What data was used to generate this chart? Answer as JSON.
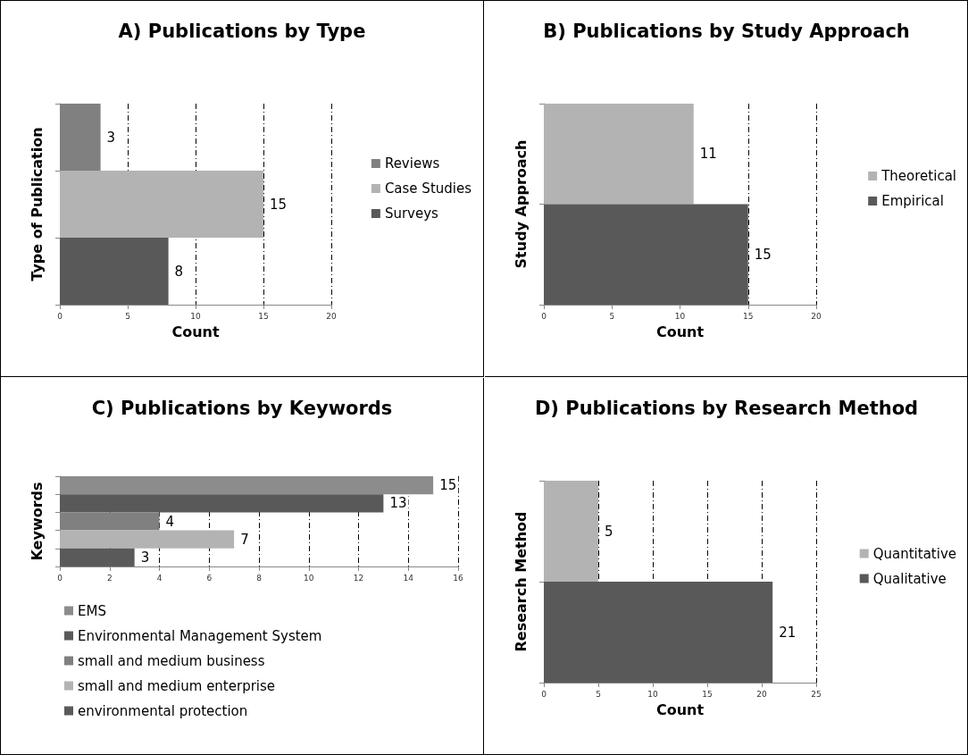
{
  "chart_data": [
    {
      "type": "bar",
      "orientation": "horizontal",
      "title": "A) Publications by Type",
      "xlabel": "Count",
      "ylabel": "Type of Publication",
      "categories": [
        null,
        null,
        null
      ],
      "series": [
        {
          "name": "Reviews",
          "color": "#808080",
          "values": [
            3,
            null,
            null
          ]
        },
        {
          "name": "Case Studies",
          "color": "#b3b3b3",
          "values": [
            null,
            15,
            null
          ]
        },
        {
          "name": "Surveys",
          "color": "#595959",
          "values": [
            null,
            null,
            8
          ]
        }
      ],
      "xlim": [
        0,
        20
      ],
      "xticks": [
        0,
        5,
        10,
        15,
        20
      ],
      "grid": "x",
      "legend": "right",
      "data_labels": true,
      "tick_labels": "x"
    },
    {
      "type": "bar",
      "orientation": "horizontal",
      "title": "B) Publications by Study Approach",
      "xlabel": "Count",
      "ylabel": "Study Approach",
      "categories": [
        null,
        null
      ],
      "series": [
        {
          "name": "Theoretical",
          "color": "#b3b3b3",
          "values": [
            11,
            null
          ]
        },
        {
          "name": "Empirical",
          "color": "#595959",
          "values": [
            null,
            15
          ]
        }
      ],
      "xlim": [
        0,
        20
      ],
      "xticks": [
        0,
        5,
        10,
        15,
        20
      ],
      "grid": "x",
      "legend": "right",
      "data_labels": true,
      "tick_labels": "x"
    },
    {
      "type": "bar",
      "orientation": "horizontal",
      "title": "C) Publications by Keywords",
      "ylabel": "Keywords",
      "categories": [
        null,
        null,
        null,
        null,
        null
      ],
      "series": [
        {
          "name": "EMS",
          "color": "#8c8c8c",
          "values": [
            15,
            null,
            null,
            null,
            null
          ]
        },
        {
          "name": "Environmental Management System",
          "color": "#595959",
          "values": [
            null,
            13,
            null,
            null,
            null
          ]
        },
        {
          "name": "small and medium business",
          "color": "#808080",
          "values": [
            null,
            null,
            4,
            null,
            null
          ]
        },
        {
          "name": "small and medium enterprise",
          "color": "#b3b3b3",
          "values": [
            null,
            null,
            null,
            7,
            null
          ]
        },
        {
          "name": "environmental protection",
          "color": "#5a5a5a",
          "values": [
            null,
            null,
            null,
            null,
            3
          ]
        }
      ],
      "xlim": [
        0,
        16
      ],
      "xticks": [
        0,
        2,
        4,
        6,
        8,
        10,
        12,
        14,
        16
      ],
      "grid": "x",
      "legend": "bottom",
      "data_labels": true,
      "tick_labels": "x"
    },
    {
      "type": "bar",
      "orientation": "horizontal",
      "title": "D) Publications by Research Method",
      "xlabel": "Count",
      "ylabel": "Research Method",
      "categories": [
        null,
        null
      ],
      "series": [
        {
          "name": "Quantitative",
          "color": "#b3b3b3",
          "values": [
            5,
            null
          ]
        },
        {
          "name": "Qualitative",
          "color": "#595959",
          "values": [
            null,
            21
          ]
        }
      ],
      "xlim": [
        0,
        25
      ],
      "xticks": [
        0,
        5,
        10,
        15,
        20,
        25
      ],
      "grid": "x",
      "legend": "right",
      "data_labels": true,
      "tick_labels": "x"
    }
  ]
}
